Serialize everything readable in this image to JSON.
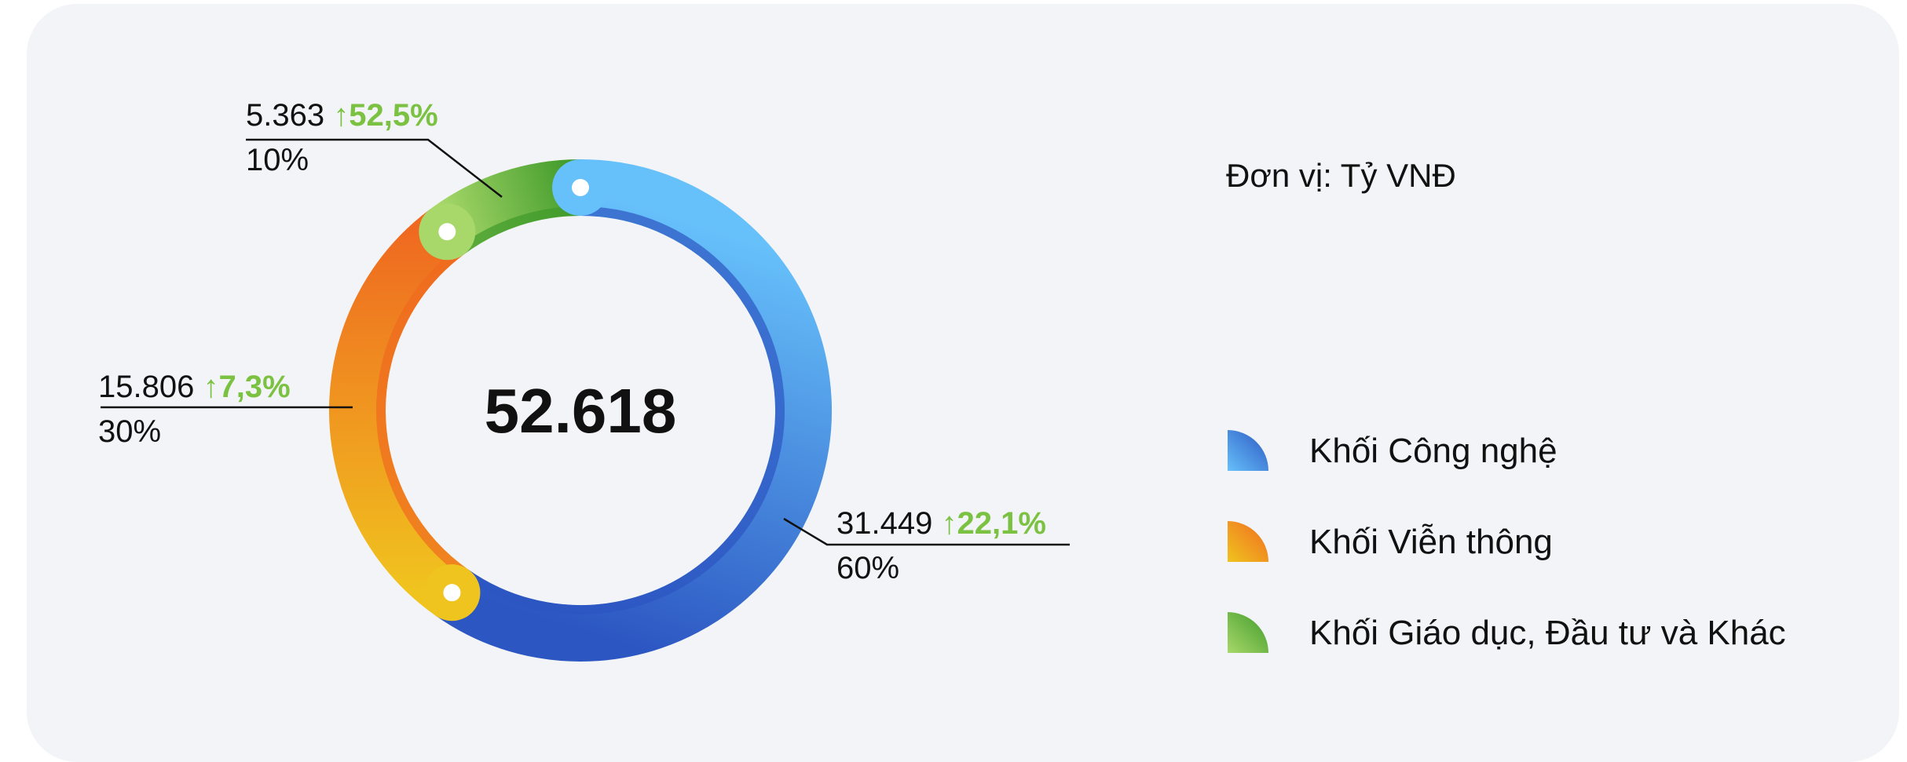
{
  "chart_data": {
    "type": "donut",
    "unit": "Đơn vị: Tỷ VNĐ",
    "total": 52618,
    "total_label": "52.618",
    "series": [
      {
        "name": "Khối Công nghệ",
        "colors": [
          "#66c0fa",
          "#2c56c2"
        ],
        "value": 31449,
        "value_label": "31.449",
        "share": 60,
        "share_label": "60%",
        "growth": 22.1,
        "growth_label": "↑22,1%"
      },
      {
        "name": "Khối Viễn thông",
        "colors": [
          "#f0c41f",
          "#ef6a20"
        ],
        "value": 15806,
        "value_label": "15.806",
        "share": 30,
        "share_label": "30%",
        "growth": 7.3,
        "growth_label": "↑7,3%"
      },
      {
        "name": "Khối Giáo dục, Đầu tư và Khác",
        "colors": [
          "#a8d86a",
          "#3f9a2a"
        ],
        "value": 5363,
        "value_label": "5.363",
        "share": 10,
        "share_label": "10%",
        "growth": 52.5,
        "growth_label": "↑52,5%"
      }
    ],
    "growth_color": "#7cc242"
  }
}
